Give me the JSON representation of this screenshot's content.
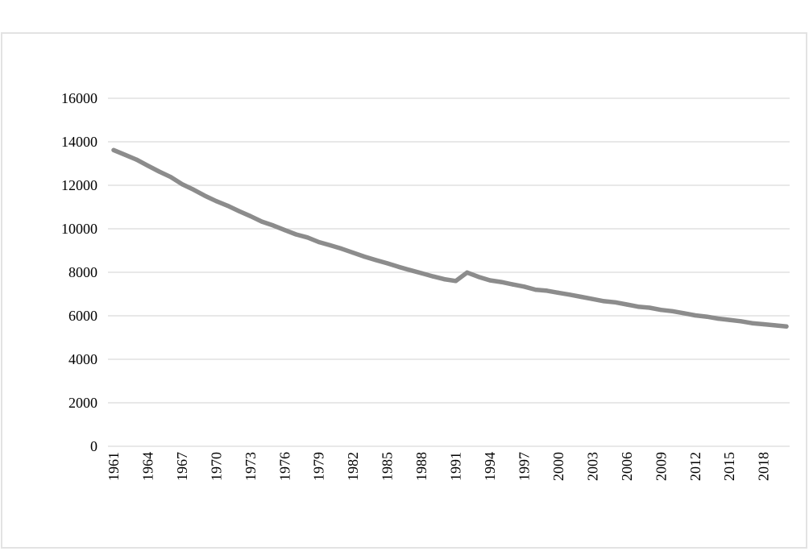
{
  "chart_data": {
    "type": "line",
    "title": "",
    "xlabel": "",
    "ylabel": "",
    "ylim": [
      0,
      16000
    ],
    "yticks": [
      "0",
      "2000",
      "4000",
      "6000",
      "8000",
      "10000",
      "12000",
      "14000",
      "16000"
    ],
    "xticks": [
      "1961",
      "1964",
      "1967",
      "1970",
      "1973",
      "1976",
      "1979",
      "1982",
      "1985",
      "1988",
      "1991",
      "1994",
      "1997",
      "2000",
      "2003",
      "2006",
      "2009",
      "2012",
      "2015",
      "2018"
    ],
    "grid": true,
    "legend": "none",
    "colors": {
      "line": "#8c8c8c",
      "grid": "#d9d9d9",
      "frame": "#e3e3e3"
    },
    "x": [
      1961,
      1962,
      1963,
      1964,
      1965,
      1966,
      1967,
      1968,
      1969,
      1970,
      1971,
      1972,
      1973,
      1974,
      1975,
      1976,
      1977,
      1978,
      1979,
      1980,
      1981,
      1982,
      1983,
      1984,
      1985,
      1986,
      1987,
      1988,
      1989,
      1990,
      1991,
      1992,
      1993,
      1994,
      1995,
      1996,
      1997,
      1998,
      1999,
      2000,
      2001,
      2002,
      2003,
      2004,
      2005,
      2006,
      2007,
      2008,
      2009,
      2010,
      2011,
      2012,
      2013,
      2014,
      2015,
      2016,
      2017,
      2018,
      2019,
      2020
    ],
    "values": [
      13620,
      13400,
      13180,
      12900,
      12630,
      12380,
      12050,
      11800,
      11520,
      11270,
      11060,
      10810,
      10580,
      10330,
      10150,
      9940,
      9740,
      9600,
      9390,
      9240,
      9080,
      8900,
      8720,
      8560,
      8410,
      8250,
      8100,
      7960,
      7810,
      7680,
      7600,
      7990,
      7790,
      7630,
      7550,
      7440,
      7340,
      7200,
      7150,
      7060,
      6970,
      6870,
      6770,
      6670,
      6620,
      6520,
      6420,
      6370,
      6270,
      6210,
      6120,
      6020,
      5960,
      5870,
      5810,
      5750,
      5660,
      5610,
      5560,
      5510
    ]
  }
}
